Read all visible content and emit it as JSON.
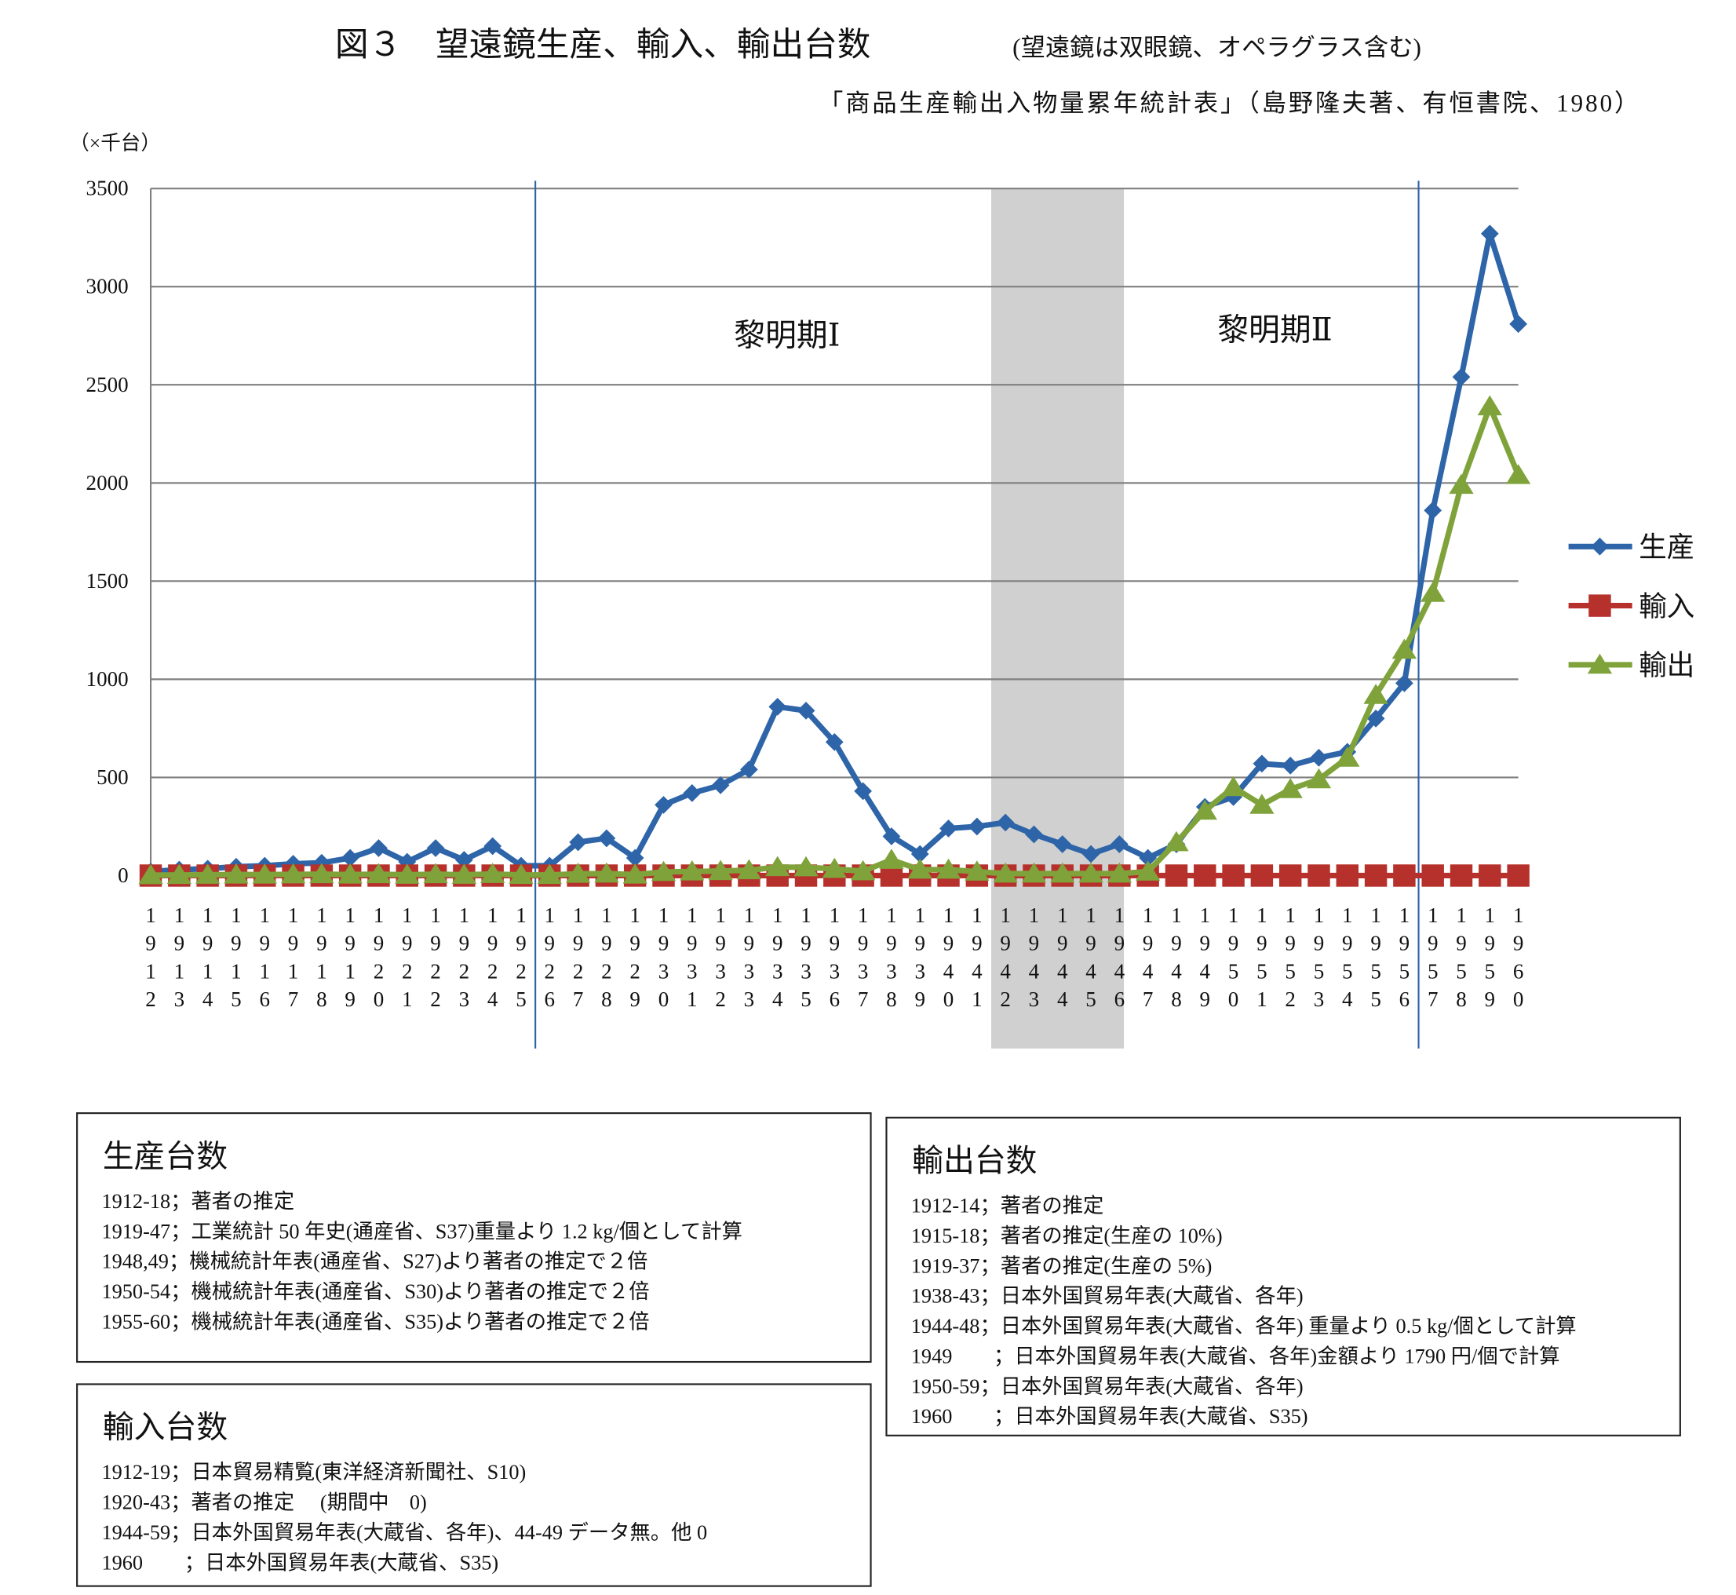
{
  "chart_data": {
    "type": "line",
    "title": "図３　望遠鏡生産、輸入、輸出台数",
    "subtitle": "(望遠鏡は双眼鏡、オペラグラス含む)",
    "source": "「商品生産輸出入物量累年統計表」（島野隆夫著、有恒書院、1980）",
    "y_label": "（×千台）",
    "annotations": [
      "黎明期Ⅰ",
      "黎明期Ⅱ"
    ],
    "categories": [
      "1912",
      "1913",
      "1914",
      "1915",
      "1916",
      "1917",
      "1918",
      "1919",
      "1920",
      "1921",
      "1922",
      "1923",
      "1924",
      "1925",
      "1926",
      "1927",
      "1928",
      "1929",
      "1930",
      "1931",
      "1932",
      "1933",
      "1934",
      "1935",
      "1936",
      "1937",
      "1938",
      "1939",
      "1940",
      "1941",
      "1942",
      "1943",
      "1944",
      "1945",
      "1946",
      "1947",
      "1948",
      "1949",
      "1950",
      "1951",
      "1952",
      "1953",
      "1954",
      "1955",
      "1956",
      "1957",
      "1958",
      "1959",
      "1960"
    ],
    "series": [
      {
        "name": "生産",
        "color": "#2e64a8",
        "marker": "diamond",
        "values": [
          20,
          30,
          35,
          45,
          50,
          60,
          65,
          90,
          140,
          70,
          140,
          80,
          150,
          50,
          50,
          170,
          190,
          90,
          360,
          420,
          460,
          540,
          860,
          840,
          680,
          430,
          200,
          110,
          240,
          250,
          270,
          210,
          160,
          110,
          160,
          90,
          160,
          350,
          400,
          570,
          560,
          600,
          630,
          800,
          980,
          1860,
          2540,
          3270,
          2810
        ]
      },
      {
        "name": "輸入",
        "color": "#b7312c",
        "marker": "square",
        "values": [
          0,
          0,
          0,
          0,
          0,
          0,
          0,
          0,
          0,
          0,
          0,
          0,
          0,
          0,
          0,
          0,
          0,
          0,
          0,
          0,
          0,
          0,
          0,
          0,
          0,
          0,
          0,
          0,
          0,
          0,
          0,
          0,
          0,
          0,
          0,
          0,
          0,
          0,
          0,
          0,
          0,
          0,
          0,
          0,
          0,
          0,
          0,
          0,
          0
        ]
      },
      {
        "name": "輸出",
        "color": "#7fa33a",
        "marker": "triangle",
        "values": [
          2,
          3,
          4,
          5,
          5,
          6,
          7,
          5,
          7,
          4,
          7,
          4,
          8,
          3,
          3,
          9,
          10,
          5,
          18,
          21,
          23,
          27,
          43,
          42,
          34,
          22,
          80,
          30,
          30,
          20,
          10,
          10,
          10,
          10,
          10,
          20,
          170,
          330,
          450,
          360,
          440,
          490,
          600,
          920,
          1150,
          1440,
          1990,
          2390,
          2040
        ]
      }
    ],
    "ylim": [
      0,
      3500
    ],
    "yticks": [
      0,
      500,
      1000,
      1500,
      2000,
      2500,
      3000,
      3500
    ],
    "grid": true,
    "legend": "right"
  },
  "notes": {
    "production": {
      "title": "生産台数",
      "lines": [
        "1912-18；著者の推定",
        "1919-47；工業統計 50 年史(通産省、S37)重量より 1.2 kg/個として計算",
        "1948,49；機械統計年表(通産省、S27)より著者の推定で２倍",
        "1950-54；機械統計年表(通産省、S30)より著者の推定で２倍",
        "1955-60；機械統計年表(通産省、S35)より著者の推定で２倍"
      ]
    },
    "import": {
      "title": "輸入台数",
      "lines": [
        "1912-19；日本貿易精覧(東洋経済新聞社、S10)",
        "1920-43；著者の推定　 (期間中　0)",
        "1944-59；日本外国貿易年表(大蔵省、各年)、44-49 データ無。他 0",
        "1960　　；日本外国貿易年表(大蔵省、S35)"
      ]
    },
    "export": {
      "title": "輸出台数",
      "lines": [
        "1912-14；著者の推定",
        "1915-18；著者の推定(生産の 10%)",
        "1919-37；著者の推定(生産の 5%)",
        "1938-43；日本外国貿易年表(大蔵省、各年)",
        "1944-48；日本外国貿易年表(大蔵省、各年)  重量より 0.5 kg/個として計算",
        "1949　　；日本外国貿易年表(大蔵省、各年)金額より 1790 円/個で計算",
        "1950-59；日本外国貿易年表(大蔵省、各年)",
        "1960　　；日本外国貿易年表(大蔵省、S35)"
      ]
    }
  }
}
